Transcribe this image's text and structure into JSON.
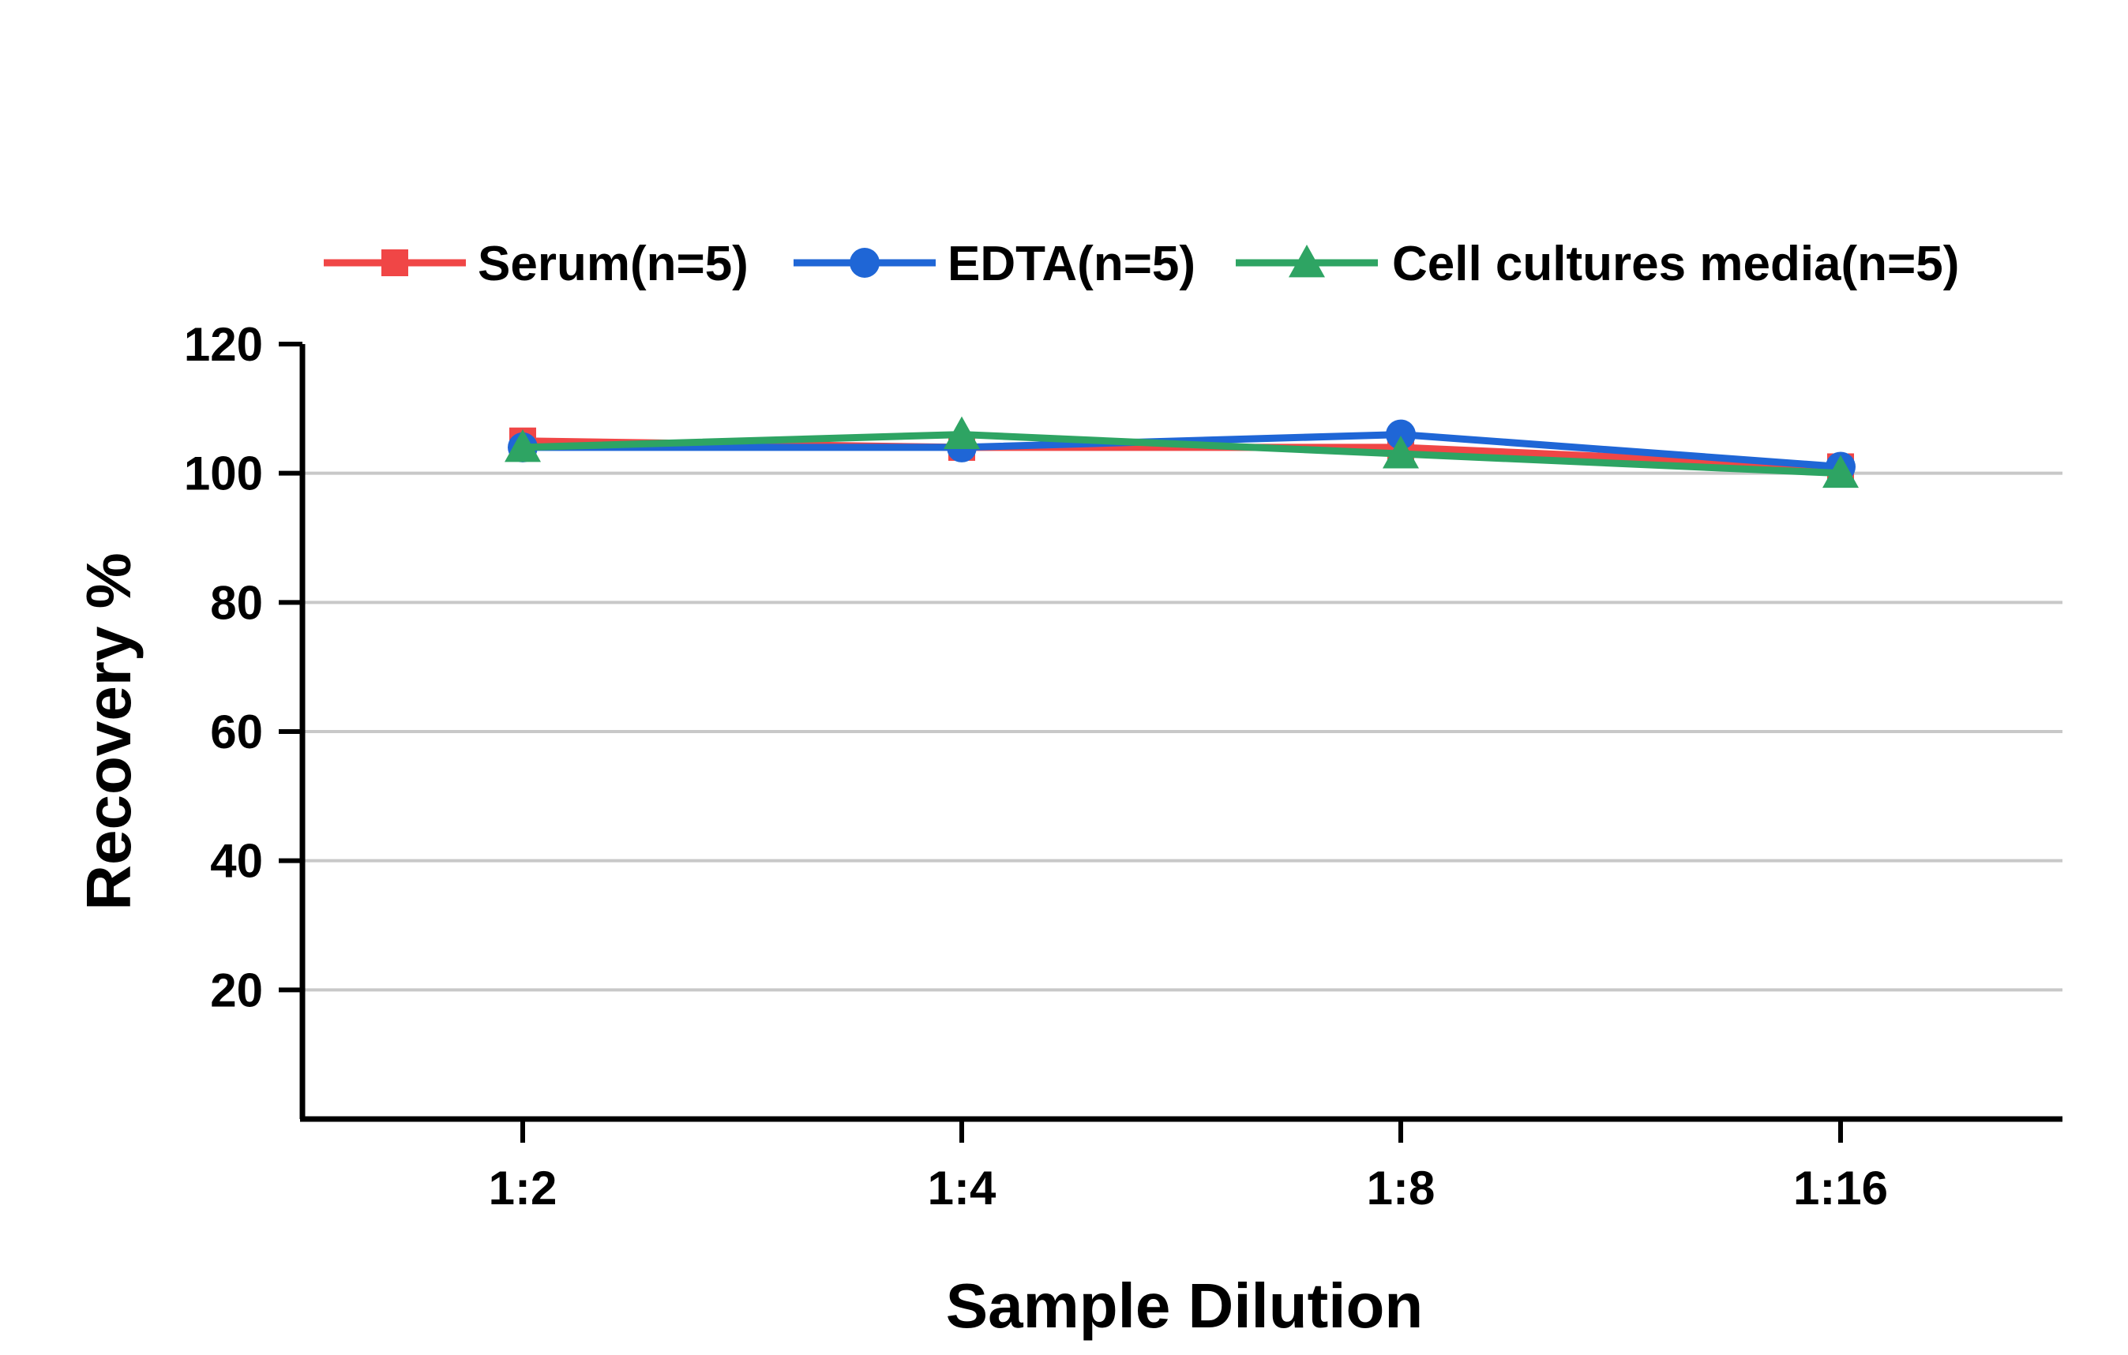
{
  "chart_data": {
    "type": "line",
    "xlabel": "Sample Dilution",
    "ylabel": "Recovery %",
    "categories": [
      "1:2",
      "1:4",
      "1:8",
      "1:16"
    ],
    "ylim": [
      0,
      120
    ],
    "yticks": [
      "20",
      "40",
      "60",
      "80",
      "100",
      "120"
    ],
    "grid": true,
    "legend_position": "top",
    "series": [
      {
        "name": "Serum(n=5)",
        "values": [
          105,
          104,
          104,
          101
        ],
        "color": "#f04646",
        "marker": "square"
      },
      {
        "name": "EDTA(n=5)",
        "values": [
          104,
          104,
          106,
          101
        ],
        "color": "#1f66d6",
        "marker": "circle"
      },
      {
        "name": "Cell cultures media(n=5)",
        "values": [
          104,
          106,
          103,
          100
        ],
        "color": "#2ea463",
        "marker": "triangle"
      }
    ]
  }
}
